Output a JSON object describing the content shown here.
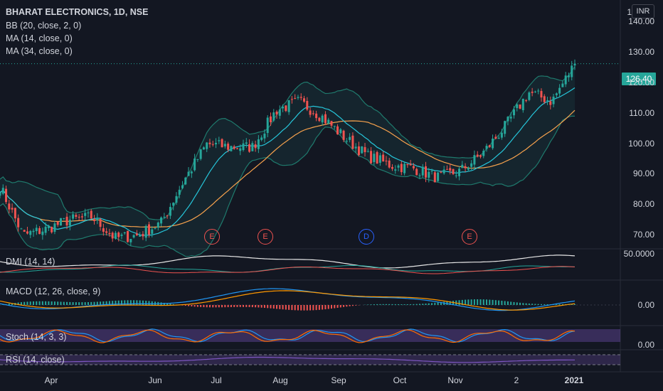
{
  "header": {
    "symbol_title": "BHARAT ELECTRONICS, 1D, NSE",
    "bb_label": "BB (20, close, 2, 0)",
    "ma14_label": "MA (14, close, 0)",
    "ma34_label": "MA (34, close, 0)",
    "currency": "INR",
    "top_tick": "1"
  },
  "price_tag": "126.40",
  "colors": {
    "up": "#26a69a",
    "down": "#ef5350",
    "bb": "#1f7a6d",
    "ma14": "#26c6da",
    "ma34": "#f7a24d",
    "macd": "#2196f3",
    "signal": "#ff9800",
    "stoch_k": "#2196f3",
    "stoch_d": "#ff6d00",
    "rsi": "#7e57c2"
  },
  "events": [
    {
      "label": "E",
      "kind": "earnings",
      "date": "Jul 3"
    },
    {
      "label": "E",
      "kind": "earnings",
      "date": "Jul 28"
    },
    {
      "label": "D",
      "kind": "dividend",
      "date": "Sep 14"
    },
    {
      "label": "E",
      "kind": "earnings",
      "date": "Nov 12"
    }
  ],
  "panes": {
    "dmi_label": "DMI (14, 14)",
    "dmi_tick": "50.0000",
    "macd_label": "MACD (12, 26, close, 9)",
    "macd_tick": "0.00",
    "stoch_label": "Stoch (14, 3, 3)",
    "stoch_tick": "0.00",
    "rsi_label": "RSI (14, close)"
  },
  "chart_data": {
    "type": "candlestick",
    "title": "BHARAT ELECTRONICS, 1D, NSE",
    "y_axis": {
      "ticks": [
        "140.00",
        "130.00",
        "120.00",
        "110.00",
        "100.00",
        "90.00",
        "80.00",
        "70.00"
      ],
      "range": [
        66,
        145
      ]
    },
    "x_axis": {
      "ticks": [
        "Apr",
        "Jun",
        "Jul",
        "Aug",
        "Sep",
        "Oct",
        "Nov",
        "2",
        "2021"
      ]
    },
    "last_price": 126.4,
    "close_path": [
      [
        "Mar 16",
        86
      ],
      [
        "Mar 28",
        70
      ],
      [
        "Apr 10",
        72
      ],
      [
        "Apr 25",
        75
      ],
      [
        "May 8",
        76
      ],
      [
        "May 20",
        69
      ],
      [
        "Jun 2",
        70
      ],
      [
        "Jun 15",
        74
      ],
      [
        "Jun 28",
        88
      ],
      [
        "Jul 5",
        100
      ],
      [
        "Jul 15",
        99
      ],
      [
        "Jul 24",
        99
      ],
      [
        "Aug 5",
        111
      ],
      [
        "Aug 20",
        114
      ],
      [
        "Sep 3",
        109
      ],
      [
        "Sep 10",
        102
      ],
      [
        "Sep 20",
        96
      ],
      [
        "Oct 5",
        93
      ],
      [
        "Oct 20",
        92
      ],
      [
        "Nov 3",
        89
      ],
      [
        "Nov 12",
        91
      ],
      [
        "Nov 24",
        97
      ],
      [
        "Dec 1",
        106
      ],
      [
        "Dec 10",
        117
      ],
      [
        "Dec 20",
        114
      ],
      [
        "Dec 31",
        126.4
      ]
    ]
  }
}
